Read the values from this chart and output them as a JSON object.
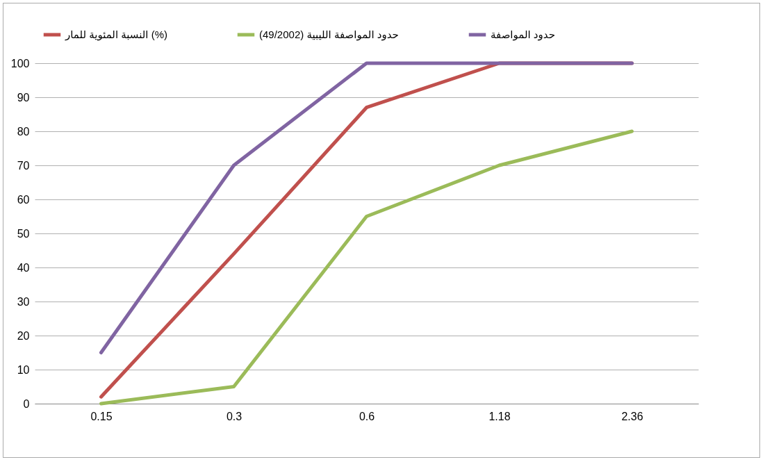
{
  "chart_data": {
    "type": "line",
    "categories": [
      "0.15",
      "0.3",
      "0.6",
      "1.18",
      "2.36"
    ],
    "series": [
      {
        "name": "النسبة المئوية للمار (%)",
        "color": "#c0504d",
        "values": [
          2,
          44,
          87,
          100,
          100
        ]
      },
      {
        "name": "حدود المواصفة الليبية (49/2002)",
        "color": "#9bbb59",
        "values": [
          0,
          5,
          55,
          70,
          80
        ]
      },
      {
        "name": "حدود المواصفة",
        "color": "#8064a2",
        "values": [
          15,
          70,
          100,
          100,
          100
        ]
      }
    ],
    "ylim": [
      0,
      100
    ],
    "yticks": [
      0,
      10,
      20,
      30,
      40,
      50,
      60,
      70,
      80,
      90,
      100
    ],
    "grid": "y",
    "legend": "top",
    "marker": "none",
    "line_style": "solid"
  }
}
